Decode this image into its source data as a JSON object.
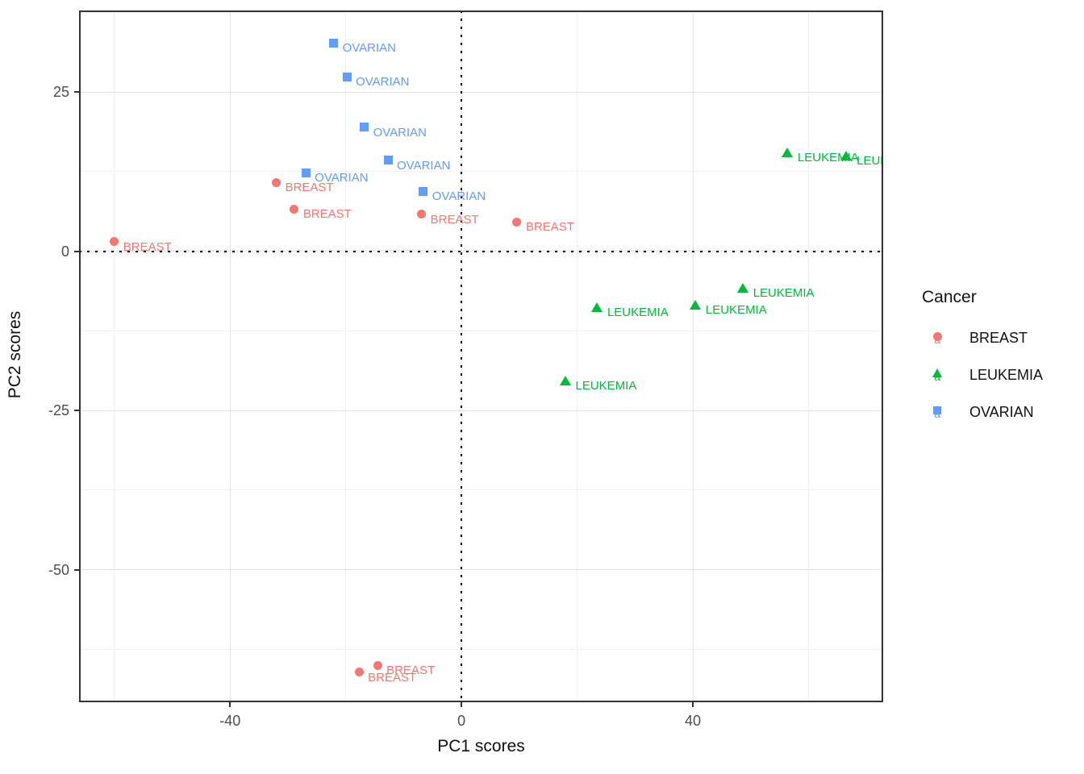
{
  "figure": {
    "background": "#FFFFFF",
    "panel_border_color": "#333333",
    "grid_major_color": "#E4E4E4",
    "grid_minor_color": "#F0F0F0",
    "tick_label_color": "#4D4D4D",
    "axis_title_color": "#111111",
    "reference_line_color": "#000000"
  },
  "chart_data": {
    "type": "scatter",
    "title": "",
    "xlabel": "PC1 scores",
    "ylabel": "PC2 scores",
    "xlim": [
      -66.1,
      72.9
    ],
    "ylim": [
      -70.8,
      37.8
    ],
    "x_ticks": [
      -40,
      0,
      40
    ],
    "x_minor_ticks": [
      -60,
      -20,
      20,
      60
    ],
    "y_ticks": [
      25,
      0,
      -25,
      -50
    ],
    "y_minor_ticks": [
      37.5,
      12.5,
      -12.5,
      -37.5,
      -62.5
    ],
    "grid": true,
    "reference_lines": [
      {
        "axis": "x",
        "value": 0,
        "style": "dotted"
      },
      {
        "axis": "y",
        "value": 0,
        "style": "dotted"
      }
    ],
    "legend": {
      "title": "Cancer",
      "position": "right",
      "entries": [
        "BREAST",
        "LEUKEMIA",
        "OVARIAN"
      ]
    },
    "point_labels_equal_series_name": true,
    "series": [
      {
        "name": "BREAST",
        "shape": "circle",
        "color": "#F8766D",
        "points": [
          [
            -60,
            1.5
          ],
          [
            -32,
            10.8
          ],
          [
            -28.9,
            6.6
          ],
          [
            -6.9,
            5.8
          ],
          [
            9.6,
            4.6
          ],
          [
            -17.7,
            -66.1
          ],
          [
            -14.5,
            -65
          ]
        ]
      },
      {
        "name": "LEUKEMIA",
        "shape": "triangle",
        "color": "#00BA38",
        "points": [
          [
            17.9,
            -20.3
          ],
          [
            23.4,
            -8.8
          ],
          [
            40.4,
            -8.4
          ],
          [
            48.6,
            -5.8
          ],
          [
            56.3,
            15.5
          ],
          [
            66.5,
            15
          ]
        ]
      },
      {
        "name": "OVARIAN",
        "shape": "square",
        "color": "#619CFF",
        "points": [
          [
            -26.9,
            12.3
          ],
          [
            -22.1,
            32.7
          ],
          [
            -19.8,
            27.4
          ],
          [
            -16.8,
            19.5
          ],
          [
            -12.7,
            14.3
          ],
          [
            -6.6,
            9.4
          ]
        ]
      }
    ]
  }
}
